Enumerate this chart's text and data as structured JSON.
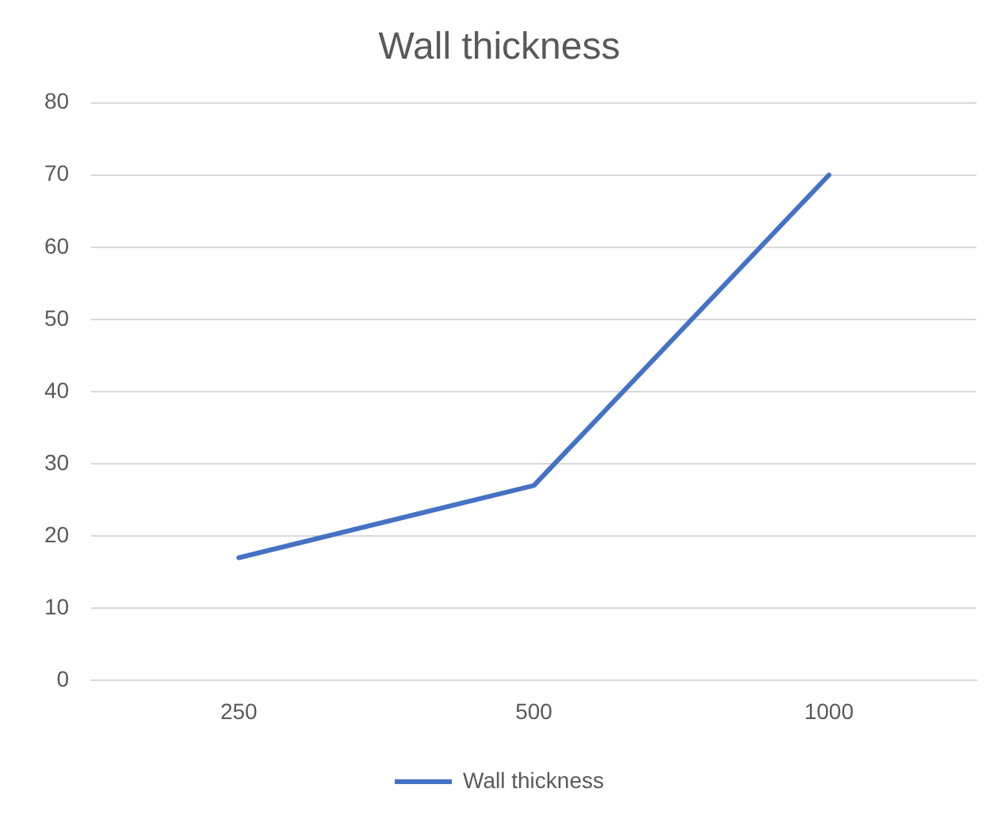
{
  "chart_data": {
    "type": "line",
    "title": "Wall thickness",
    "categories": [
      "250",
      "500",
      "1000"
    ],
    "series": [
      {
        "name": "Wall thickness",
        "color": "#4472c4",
        "values": [
          17,
          27,
          70
        ]
      }
    ],
    "ylim": [
      0,
      80
    ],
    "yticks": [
      0,
      10,
      20,
      30,
      40,
      50,
      60,
      70,
      80
    ],
    "grid": "y",
    "legend": "bottom",
    "marker": "none",
    "line_style": "solid"
  }
}
